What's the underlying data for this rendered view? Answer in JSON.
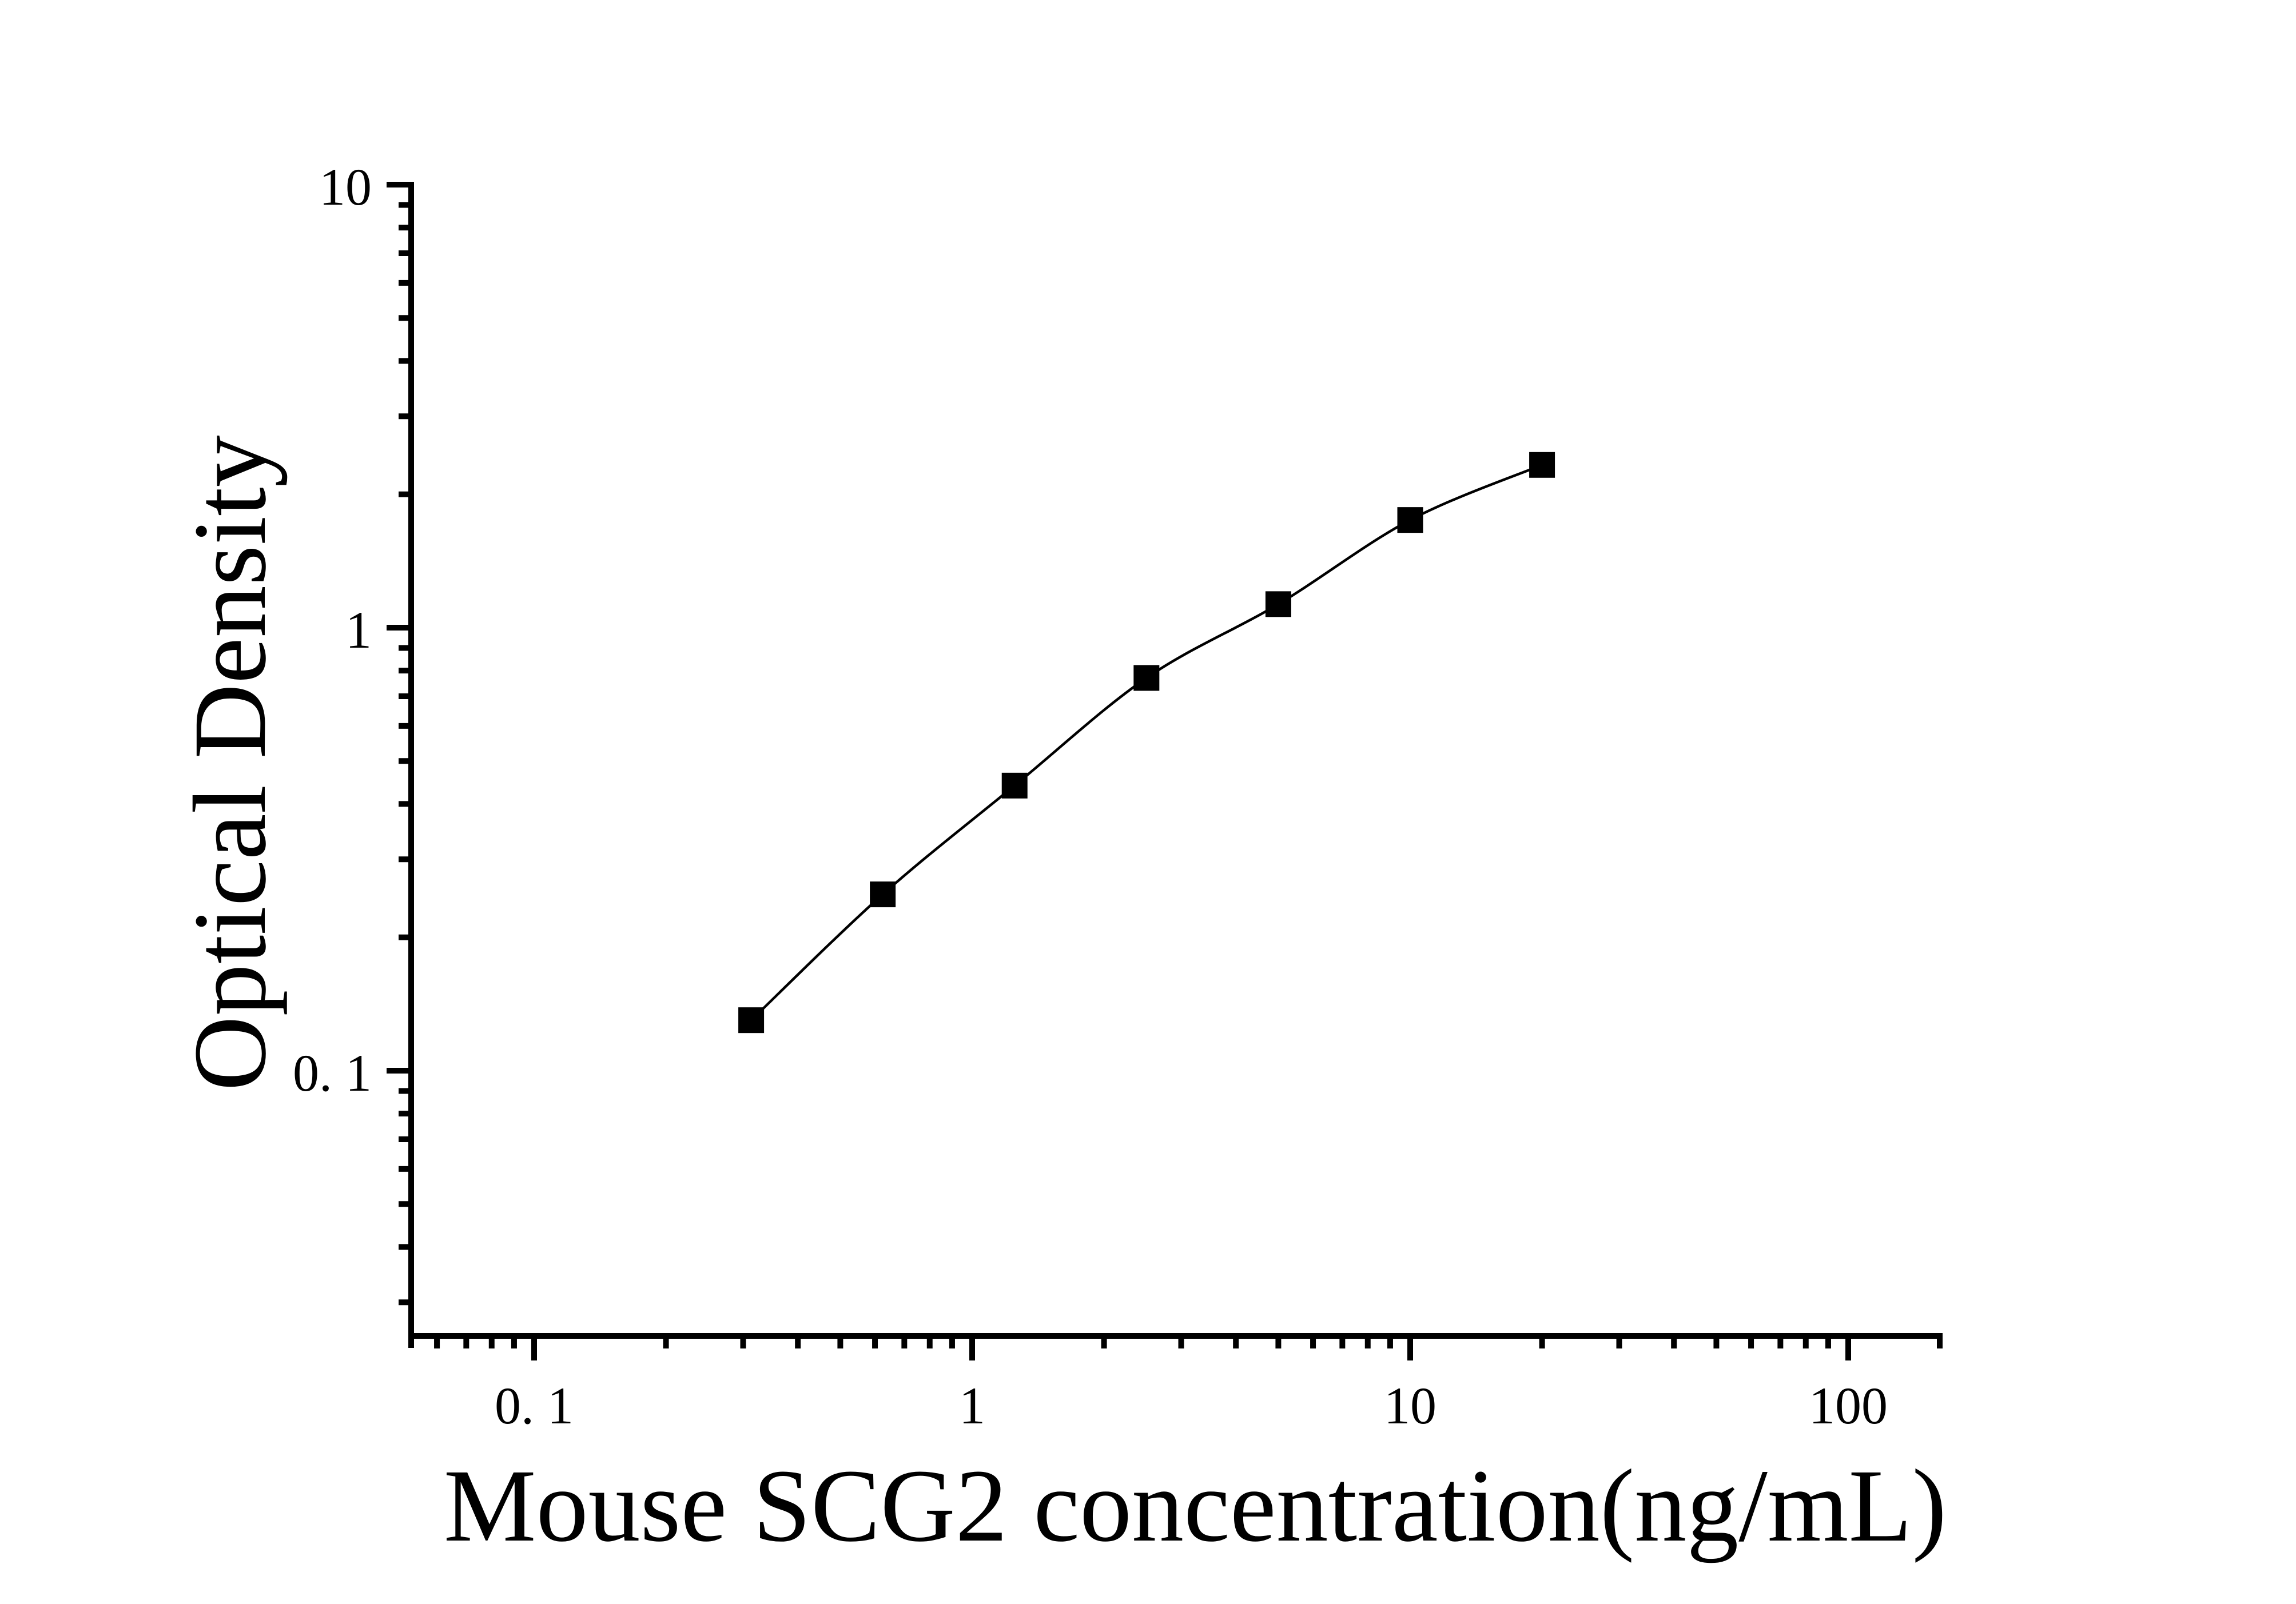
{
  "chart_data": {
    "type": "line",
    "title": "",
    "xlabel": "Mouse SCG2 concentration(ng/mL)",
    "ylabel": "Optical Density",
    "x_scale": "log",
    "y_scale": "log",
    "xlim": [
      0.052,
      164
    ],
    "ylim": [
      0.025,
      10.2
    ],
    "x_major_ticks": [
      0.1,
      1,
      10,
      100
    ],
    "x_tick_labels": [
      "0. 1",
      "1",
      "10",
      "100"
    ],
    "y_major_ticks": [
      0.1,
      1,
      10
    ],
    "y_tick_labels": [
      "0. 1",
      "1",
      "10"
    ],
    "grid": false,
    "legend_position": "none",
    "marker": "filled-square",
    "line_color": "#000000",
    "marker_color": "#000000",
    "axis_color": "#000000",
    "background_color": "#ffffff",
    "series": [
      {
        "name": "standard-curve",
        "x": [
          0.313,
          0.625,
          1.25,
          2.5,
          5,
          10,
          20
        ],
        "y": [
          0.13,
          0.25,
          0.44,
          0.77,
          1.13,
          1.75,
          2.33
        ]
      }
    ]
  }
}
